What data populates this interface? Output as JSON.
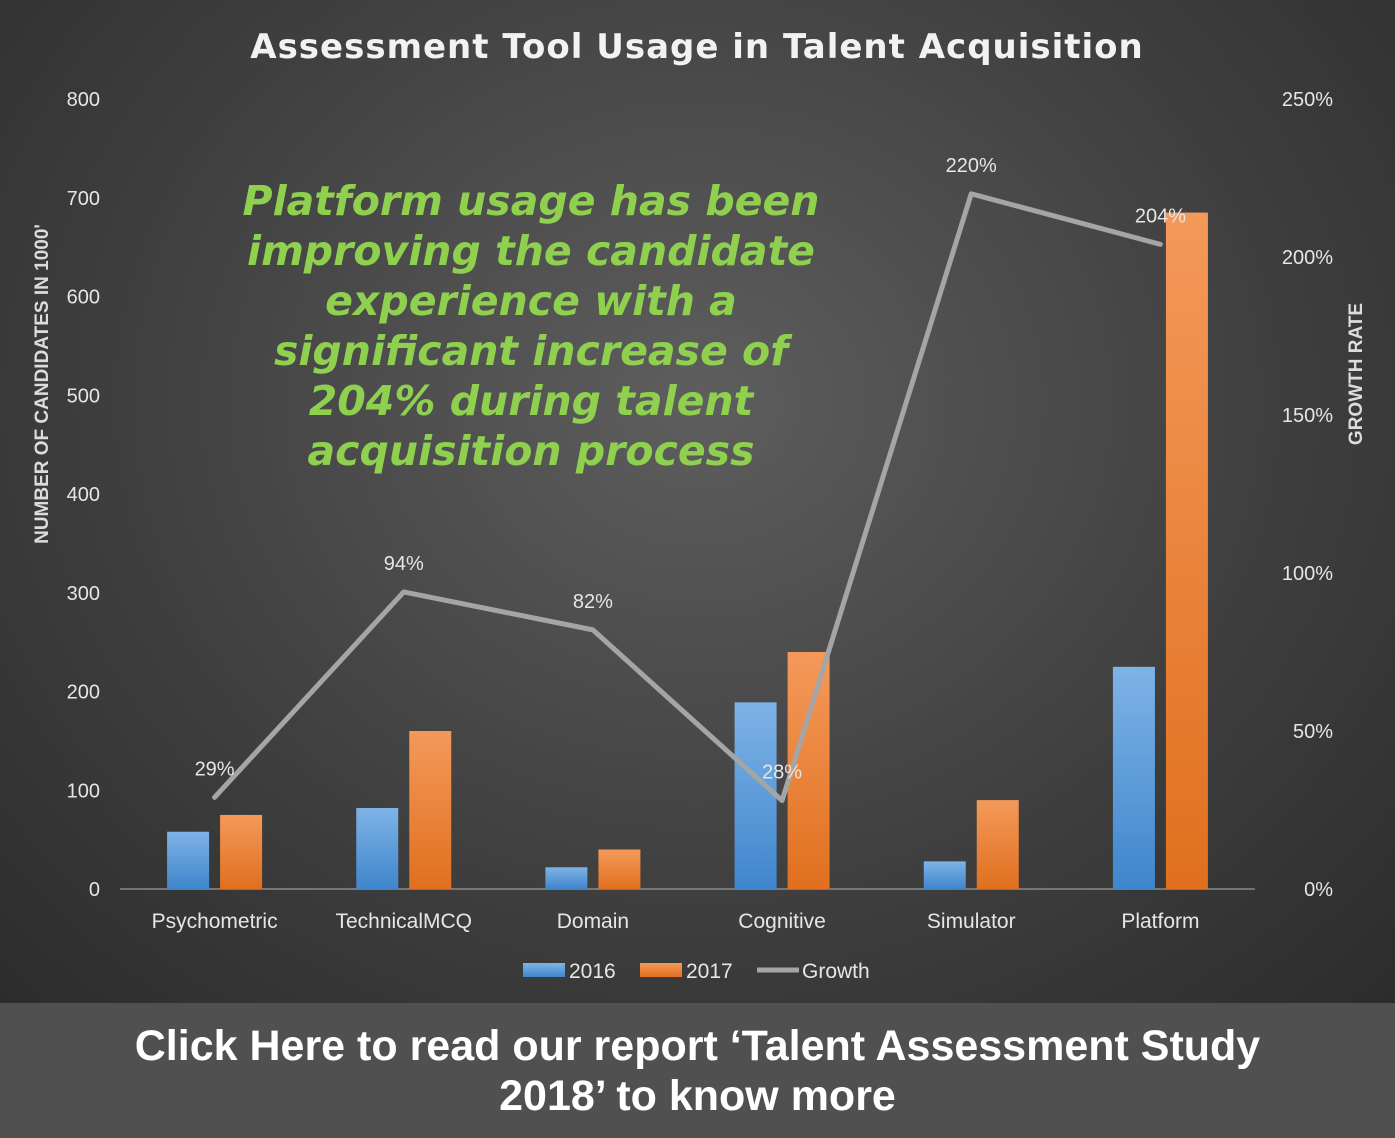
{
  "chart_data": {
    "type": "bar",
    "title": "Assessment Tool Usage in Talent Acquisition",
    "categories": [
      "Psychometric",
      "TechnicalMCQ",
      "Domain",
      "Cognitive",
      "Simulator",
      "Platform"
    ],
    "series": [
      {
        "name": "2016",
        "type": "bar",
        "axis": "left",
        "color": "#5b9bd5",
        "values": [
          58,
          82,
          22,
          189,
          28,
          225
        ]
      },
      {
        "name": "2017",
        "type": "bar",
        "axis": "left",
        "color": "#ed7d31",
        "values": [
          75,
          160,
          40,
          240,
          90,
          685
        ]
      },
      {
        "name": "Growth",
        "type": "line",
        "axis": "right",
        "color": "#a5a5a5",
        "values": [
          29,
          94,
          82,
          28,
          220,
          204
        ],
        "labels": [
          "29%",
          "94%",
          "82%",
          "28%",
          "220%",
          "204%"
        ]
      }
    ],
    "ylabel": "NUMBER OF CANDIDATES IN 1000'",
    "y2label": "GROWTH RATE",
    "ylim": [
      0,
      800
    ],
    "y2lim": [
      0,
      250
    ],
    "yticks": [
      "0",
      "100",
      "200",
      "300",
      "400",
      "500",
      "600",
      "700",
      "800"
    ],
    "y2ticks": [
      "0%",
      "50%",
      "100%",
      "150%",
      "200%",
      "250%"
    ],
    "legend_position": "bottom",
    "grid": false,
    "annotation": {
      "color": "#8fd14f",
      "lines": [
        "Platform usage has been",
        "improving the candidate",
        "experience with a",
        "significant increase of",
        "204% during talent",
        "acquisition process"
      ]
    }
  },
  "banner": {
    "lines": [
      "Click Here to read our report ‘Talent Assessment Study",
      "2018’ to know more"
    ]
  }
}
